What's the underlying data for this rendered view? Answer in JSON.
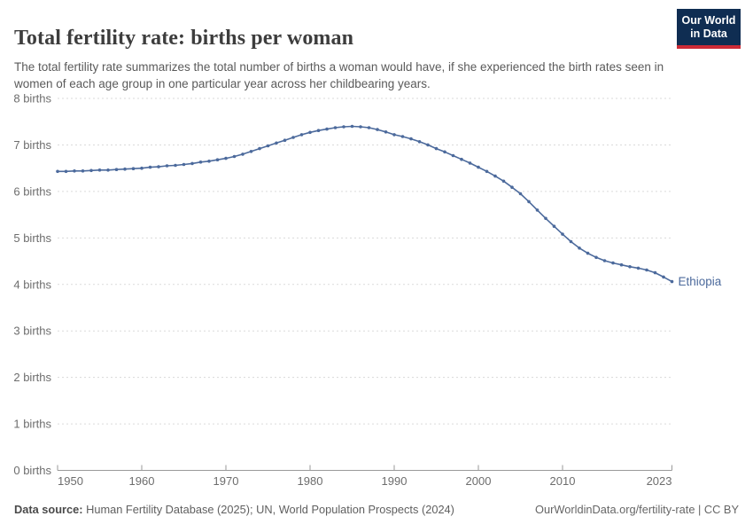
{
  "header": {
    "title": "Total fertility rate: births per woman",
    "subtitle": "The total fertility rate summarizes the total number of births a woman would have, if she experienced the birth rates seen in women of each age group in one particular year across her childbearing years.",
    "logo": {
      "line1": "Our World",
      "line2": "in Data"
    }
  },
  "footer": {
    "source_label": "Data source:",
    "source_text": " Human Fertility Database (2025); UN, World Population Prospects (2024)",
    "attribution": "OurWorldinData.org/fertility-rate | CC BY"
  },
  "colors": {
    "line": "#4C6A9C",
    "entity_label": "#4C6A9C",
    "gridline": "#dadada",
    "axis": "#999999",
    "tick_text": "#6d6d6d",
    "title_text": "#3d3d3d",
    "subtitle_text": "#5a5a5a",
    "logo_bg": "#0f2d52",
    "logo_red": "#cc2a36"
  },
  "chart_data": {
    "type": "line",
    "title": "Total fertility rate: births per woman",
    "entity": "Ethiopia",
    "xlabel": "",
    "ylabel": "births per woman",
    "xlim": [
      1950,
      2023
    ],
    "ylim": [
      0,
      8
    ],
    "grid": "horizontal dashed",
    "legend": "end-of-line entity label",
    "xticks": [
      1950,
      1960,
      1970,
      1980,
      1990,
      2000,
      2010,
      2023
    ],
    "ytick_labels": [
      "0 births",
      "1 births",
      "2 births",
      "3 births",
      "4 births",
      "5 births",
      "6 births",
      "7 births",
      "8 births"
    ],
    "x": [
      1950,
      1951,
      1952,
      1953,
      1954,
      1955,
      1956,
      1957,
      1958,
      1959,
      1960,
      1961,
      1962,
      1963,
      1964,
      1965,
      1966,
      1967,
      1968,
      1969,
      1970,
      1971,
      1972,
      1973,
      1974,
      1975,
      1976,
      1977,
      1978,
      1979,
      1980,
      1981,
      1982,
      1983,
      1984,
      1985,
      1986,
      1987,
      1988,
      1989,
      1990,
      1991,
      1992,
      1993,
      1994,
      1995,
      1996,
      1997,
      1998,
      1999,
      2000,
      2001,
      2002,
      2003,
      2004,
      2005,
      2006,
      2007,
      2008,
      2009,
      2010,
      2011,
      2012,
      2013,
      2014,
      2015,
      2016,
      2017,
      2018,
      2019,
      2020,
      2021,
      2022,
      2023
    ],
    "series": [
      {
        "name": "Ethiopia",
        "values": [
          6.43,
          6.43,
          6.44,
          6.44,
          6.45,
          6.46,
          6.46,
          6.47,
          6.48,
          6.49,
          6.5,
          6.52,
          6.53,
          6.55,
          6.56,
          6.58,
          6.6,
          6.63,
          6.65,
          6.68,
          6.71,
          6.75,
          6.8,
          6.86,
          6.92,
          6.98,
          7.04,
          7.1,
          7.16,
          7.22,
          7.27,
          7.31,
          7.34,
          7.37,
          7.39,
          7.4,
          7.39,
          7.37,
          7.33,
          7.28,
          7.22,
          7.18,
          7.13,
          7.07,
          7.0,
          6.92,
          6.85,
          6.77,
          6.69,
          6.61,
          6.52,
          6.43,
          6.33,
          6.22,
          6.09,
          5.95,
          5.78,
          5.6,
          5.42,
          5.25,
          5.08,
          4.92,
          4.78,
          4.67,
          4.58,
          4.51,
          4.46,
          4.42,
          4.38,
          4.35,
          4.31,
          4.25,
          4.16,
          4.06
        ]
      }
    ]
  }
}
